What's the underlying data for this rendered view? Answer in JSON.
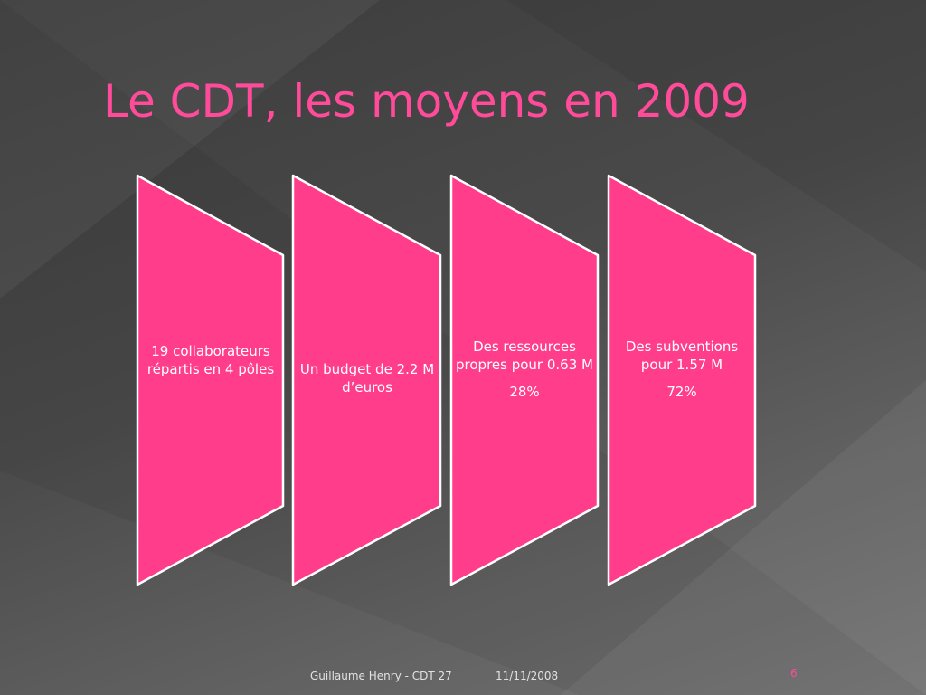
{
  "slide": {
    "title": "Le CDT, les moyens en 2009",
    "panels": [
      {
        "text": "19 collaborateurs répartis en 4 pôles",
        "percent": ""
      },
      {
        "text": "Un budget de 2.2 M d’euros",
        "percent": ""
      },
      {
        "text": "Des ressources propres pour 0.63 M",
        "percent": "28%"
      },
      {
        "text": "Des subventions pour 1.57 M",
        "percent": "72%"
      }
    ],
    "colors": {
      "accent": "#ff4b9a",
      "panel_fill": "#ff3d8b",
      "panel_stroke": "#ffffff",
      "background": "#4a4a4a"
    }
  },
  "footer": {
    "author": "Guillaume Henry - CDT 27",
    "date": "11/11/2008",
    "page_number": "6"
  }
}
